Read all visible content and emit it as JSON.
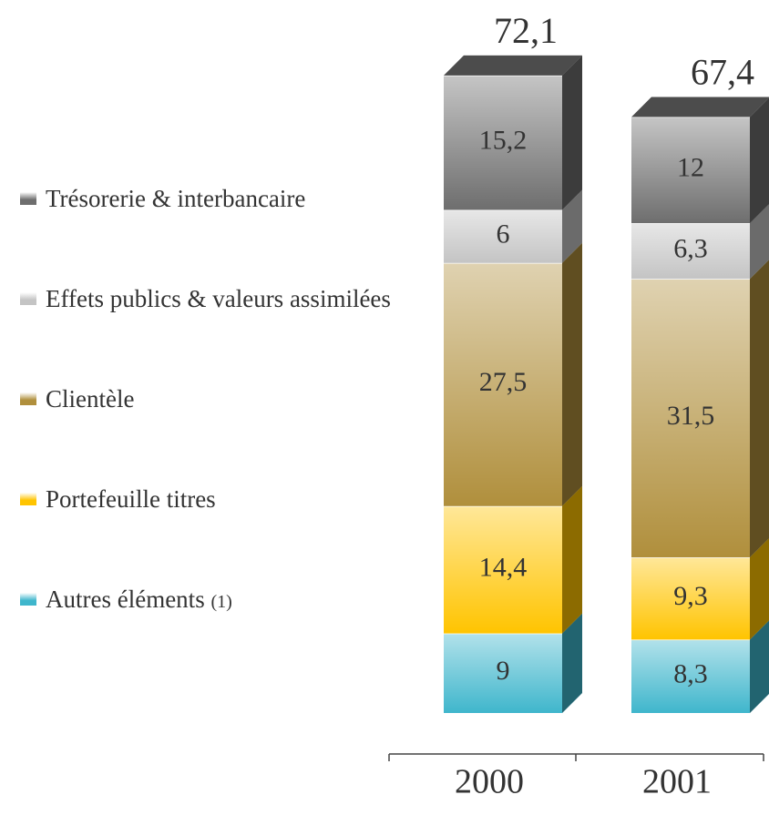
{
  "chart_data": {
    "type": "stacked-bar-3d",
    "categories": [
      "2000",
      "2001"
    ],
    "series": [
      {
        "name": "Autres éléments",
        "color": "#3fb6cc",
        "values": [
          9,
          8.3
        ],
        "value_labels": [
          "9",
          "8,3"
        ]
      },
      {
        "name": "Portefeuille titres",
        "color": "#ffc400",
        "values": [
          14.4,
          9.3
        ],
        "value_labels": [
          "14,4",
          "9,3"
        ]
      },
      {
        "name": "Clientèle",
        "color": "#b08f3c",
        "values": [
          27.5,
          31.5
        ],
        "value_labels": [
          "27,5",
          "31,5"
        ]
      },
      {
        "name": "Effets publics & valeurs assimilées",
        "color": "#c4c4c4",
        "values": [
          6,
          6.3
        ],
        "value_labels": [
          "6",
          "6,3"
        ]
      },
      {
        "name": "Trésorerie & interbancaire",
        "color": "#6e6e6e",
        "values": [
          15.2,
          12
        ],
        "value_labels": [
          "15,2",
          "12"
        ]
      }
    ],
    "totals": [
      72.1,
      67.4
    ],
    "total_labels": [
      "72,1",
      "67,4"
    ],
    "legend_note": "(1)"
  }
}
